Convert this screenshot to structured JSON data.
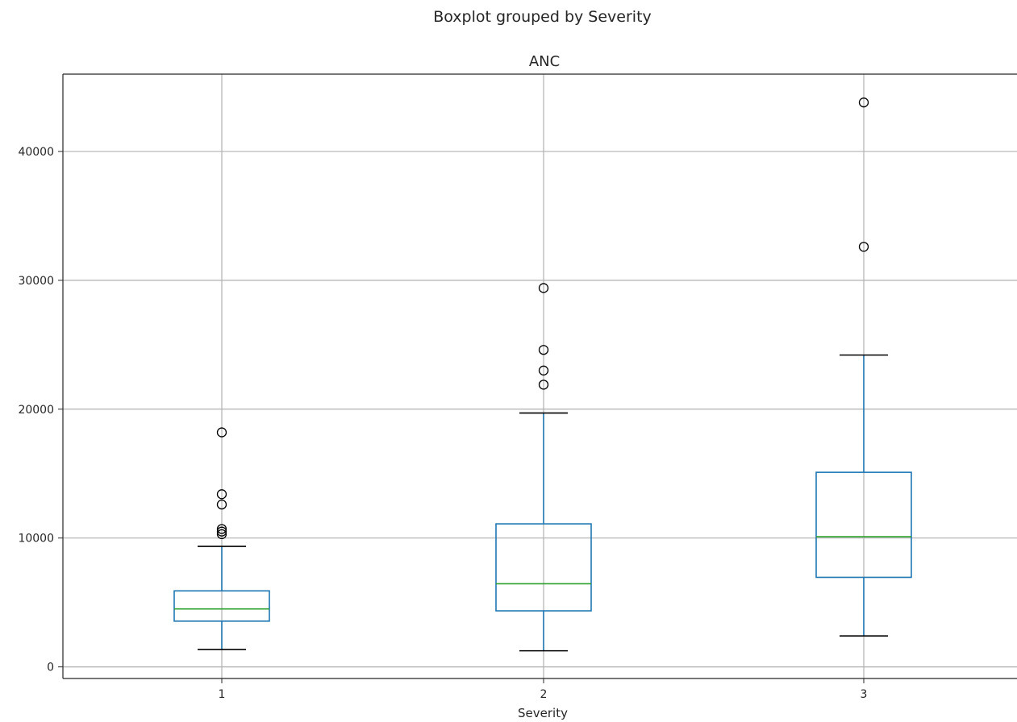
{
  "chart_data": {
    "type": "boxplot",
    "suptitle": "Boxplot grouped by Severity",
    "title": "ANC",
    "xlabel": "Severity",
    "ylabel": "",
    "categories": [
      "1",
      "2",
      "3"
    ],
    "ylim": [
      -900,
      46000
    ],
    "yticks": [
      0,
      10000,
      20000,
      30000,
      40000
    ],
    "ytick_labels": [
      "0",
      "10000",
      "20000",
      "30000",
      "40000"
    ],
    "grid": true,
    "boxes": [
      {
        "category": "1",
        "whislo": 1350,
        "q1": 3550,
        "med": 4500,
        "q3": 5900,
        "whishi": 9350,
        "fliers": [
          10300,
          10500,
          10700,
          12600,
          13400,
          18200
        ]
      },
      {
        "category": "2",
        "whislo": 1250,
        "q1": 4350,
        "med": 6450,
        "q3": 11100,
        "whishi": 19700,
        "fliers": [
          21900,
          23000,
          24600,
          29400
        ]
      },
      {
        "category": "3",
        "whislo": 2400,
        "q1": 6950,
        "med": 10100,
        "q3": 15100,
        "whishi": 24200,
        "fliers": [
          32600,
          43800
        ]
      }
    ],
    "colors": {
      "box": "#1f77b4",
      "median": "#2ca02c",
      "whisker_cap": "#000000",
      "grid": "#b0b0b0",
      "flier": "#000000"
    }
  }
}
